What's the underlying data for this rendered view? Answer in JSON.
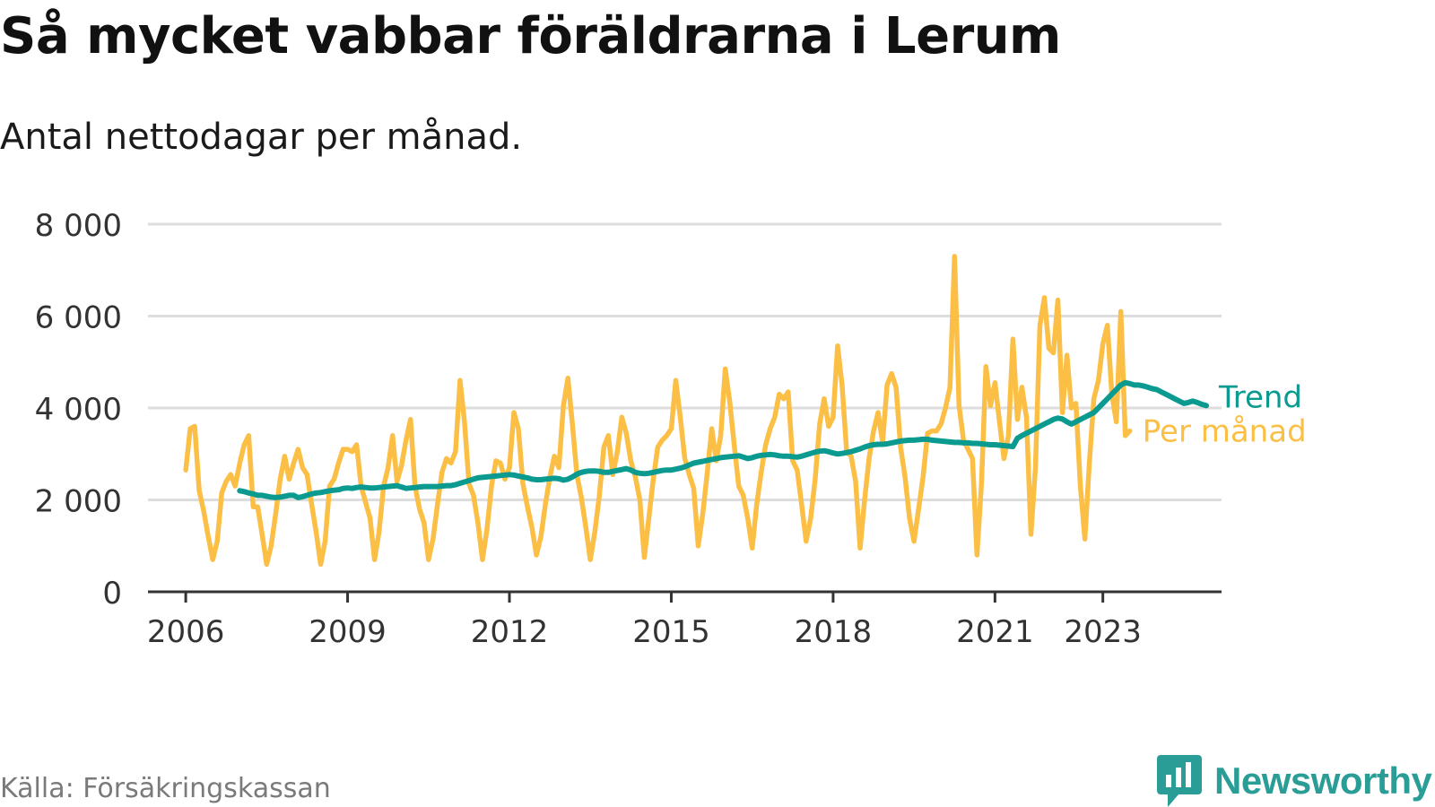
{
  "title": "Så mycket vabbar föräldrarna i Lerum",
  "subtitle": "Antal nettodagar per månad.",
  "source": "Källa: Försäkringskassan",
  "brand": {
    "name": "Newsworthy",
    "icon": "newsworthy-logo-icon"
  },
  "colors": {
    "monthly": "#fbbf45",
    "trend": "#0a9a8f",
    "grid": "#dddddd",
    "axis": "#333333",
    "text": "#333333"
  },
  "chart_data": {
    "type": "line",
    "title": "Så mycket vabbar föräldrarna i Lerum",
    "subtitle": "Antal nettodagar per månad.",
    "xlabel": "",
    "ylabel": "",
    "ylim": [
      0,
      8000
    ],
    "yticks": [
      0,
      2000,
      4000,
      6000,
      8000
    ],
    "ytick_labels": [
      "0",
      "2 000",
      "4 000",
      "6 000",
      "8 000"
    ],
    "xticks": [
      2006,
      2009,
      2012,
      2015,
      2018,
      2021,
      2023
    ],
    "xtick_labels": [
      "2006",
      "2009",
      "2012",
      "2015",
      "2018",
      "2021",
      "2023"
    ],
    "xlim": [
      2005.3,
      2025.2
    ],
    "grid": true,
    "legend": "direct labels at line ends",
    "series": [
      {
        "name": "Per månad",
        "start": "2006-01",
        "values": [
          2650,
          3550,
          3600,
          2200,
          1750,
          1200,
          700,
          1100,
          2150,
          2400,
          2550,
          2300,
          2800,
          3200,
          3400,
          1850,
          1850,
          1250,
          600,
          1000,
          1700,
          2450,
          2950,
          2450,
          2800,
          3100,
          2700,
          2550,
          1900,
          1300,
          600,
          1100,
          2300,
          2450,
          2800,
          3100,
          3100,
          3050,
          3200,
          2300,
          1950,
          1600,
          700,
          1300,
          2300,
          2700,
          3400,
          2400,
          2750,
          3300,
          3750,
          2300,
          1800,
          1500,
          700,
          1150,
          1900,
          2600,
          2900,
          2800,
          3050,
          4600,
          3700,
          2350,
          2100,
          1500,
          700,
          1350,
          2300,
          2850,
          2800,
          2450,
          2700,
          3900,
          3550,
          2350,
          1850,
          1400,
          800,
          1200,
          1900,
          2500,
          2950,
          2700,
          4050,
          4650,
          3650,
          2550,
          2050,
          1400,
          700,
          1300,
          2100,
          3150,
          3400,
          2550,
          3050,
          3800,
          3450,
          2850,
          2500,
          2000,
          750,
          1600,
          2450,
          3150,
          3300,
          3400,
          3550,
          4600,
          3800,
          2900,
          2550,
          2250,
          1000,
          1700,
          2600,
          3550,
          2850,
          3400,
          4850,
          4150,
          3200,
          2300,
          2100,
          1600,
          950,
          1900,
          2600,
          3200,
          3550,
          3800,
          4300,
          4200,
          4350,
          2850,
          2650,
          1900,
          1100,
          1600,
          2450,
          3650,
          4200,
          3600,
          3800,
          5350,
          4500,
          3050,
          2950,
          2400,
          950,
          2000,
          2900,
          3500,
          3900,
          3250,
          4500,
          4750,
          4450,
          3150,
          2500,
          1600,
          1100,
          1800,
          2500,
          3450,
          3500,
          3500,
          3650,
          4000,
          4450,
          7300,
          4050,
          3300,
          3100,
          2900,
          800,
          2350,
          4900,
          4050,
          4550,
          3700,
          2900,
          3400,
          5500,
          3750,
          4450,
          3800,
          1250,
          2700,
          5800,
          6400,
          5300,
          5200,
          6350,
          3900,
          5150,
          4000,
          4100,
          2300,
          1150,
          2800,
          4200,
          4600,
          5400,
          5800,
          4300,
          3700,
          6100,
          3400,
          3500
        ],
        "last_label": "Per månad"
      },
      {
        "name": "Trend",
        "start": "2007-01",
        "values": [
          2200,
          2180,
          2150,
          2130,
          2100,
          2100,
          2080,
          2060,
          2050,
          2060,
          2080,
          2100,
          2100,
          2050,
          2070,
          2100,
          2130,
          2150,
          2160,
          2180,
          2200,
          2210,
          2220,
          2250,
          2260,
          2250,
          2270,
          2280,
          2270,
          2260,
          2260,
          2270,
          2280,
          2290,
          2300,
          2310,
          2280,
          2250,
          2260,
          2270,
          2280,
          2290,
          2290,
          2290,
          2290,
          2300,
          2310,
          2310,
          2330,
          2360,
          2390,
          2420,
          2450,
          2480,
          2490,
          2500,
          2510,
          2520,
          2530,
          2540,
          2550,
          2540,
          2520,
          2500,
          2480,
          2450,
          2440,
          2440,
          2450,
          2460,
          2470,
          2460,
          2430,
          2450,
          2500,
          2560,
          2600,
          2620,
          2630,
          2630,
          2620,
          2600,
          2600,
          2620,
          2640,
          2660,
          2680,
          2650,
          2600,
          2580,
          2570,
          2580,
          2600,
          2620,
          2640,
          2650,
          2650,
          2670,
          2690,
          2720,
          2760,
          2800,
          2820,
          2840,
          2860,
          2880,
          2900,
          2920,
          2930,
          2940,
          2950,
          2960,
          2930,
          2900,
          2920,
          2950,
          2970,
          2980,
          2990,
          2980,
          2960,
          2950,
          2950,
          2940,
          2930,
          2950,
          2980,
          3010,
          3040,
          3060,
          3070,
          3050,
          3020,
          3000,
          3010,
          3030,
          3050,
          3080,
          3110,
          3150,
          3180,
          3200,
          3210,
          3210,
          3220,
          3240,
          3260,
          3280,
          3290,
          3300,
          3300,
          3310,
          3320,
          3320,
          3300,
          3290,
          3280,
          3270,
          3260,
          3250,
          3250,
          3240,
          3240,
          3230,
          3230,
          3220,
          3210,
          3200,
          3200,
          3190,
          3180,
          3170,
          3160,
          3340,
          3400,
          3450,
          3500,
          3550,
          3600,
          3650,
          3700,
          3750,
          3780,
          3760,
          3700,
          3650,
          3700,
          3750,
          3800,
          3850,
          3900,
          4000,
          4100,
          4200,
          4300,
          4400,
          4500,
          4550,
          4530,
          4500,
          4500,
          4480,
          4450,
          4420,
          4400,
          4350,
          4300,
          4250,
          4200,
          4150,
          4100,
          4120,
          4150,
          4120,
          4080,
          4050
        ]
      }
    ]
  }
}
